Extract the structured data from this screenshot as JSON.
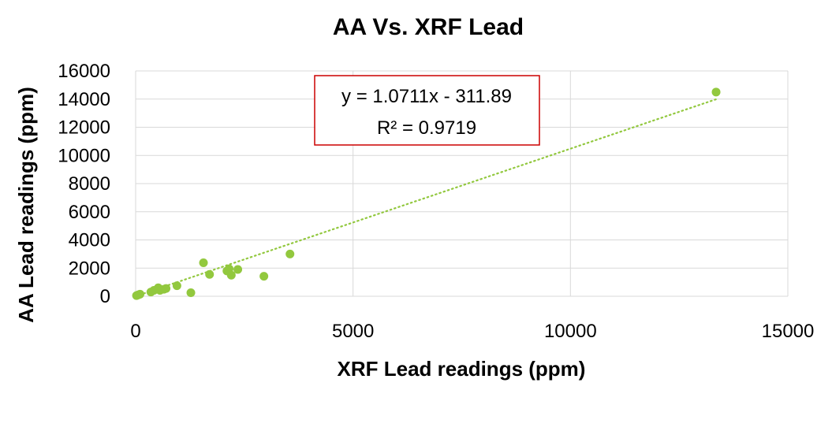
{
  "chart_data": {
    "type": "scatter",
    "title": "AA Vs. XRF Lead",
    "xlabel": "XRF Lead readings (ppm)",
    "ylabel": "AA Lead readings (ppm)",
    "xlim": [
      0,
      15000
    ],
    "ylim": [
      0,
      16000
    ],
    "x_ticks": [
      0,
      5000,
      10000,
      15000
    ],
    "y_ticks": [
      0,
      2000,
      4000,
      6000,
      8000,
      10000,
      12000,
      14000,
      16000
    ],
    "grid": true,
    "legend": "none",
    "marker_color": "#92c83e",
    "trendline_color": "#92c83e",
    "equation_box_border": "#cc0000",
    "series": [
      {
        "points": [
          {
            "x": 20,
            "y": 50
          },
          {
            "x": 60,
            "y": 100
          },
          {
            "x": 100,
            "y": 150
          },
          {
            "x": 350,
            "y": 300
          },
          {
            "x": 420,
            "y": 420
          },
          {
            "x": 520,
            "y": 600
          },
          {
            "x": 560,
            "y": 420
          },
          {
            "x": 650,
            "y": 500
          },
          {
            "x": 700,
            "y": 550
          },
          {
            "x": 950,
            "y": 750
          },
          {
            "x": 1270,
            "y": 250
          },
          {
            "x": 1560,
            "y": 2380
          },
          {
            "x": 1700,
            "y": 1550
          },
          {
            "x": 2100,
            "y": 1800
          },
          {
            "x": 2150,
            "y": 1950
          },
          {
            "x": 2200,
            "y": 1500
          },
          {
            "x": 2350,
            "y": 1900
          },
          {
            "x": 2950,
            "y": 1420
          },
          {
            "x": 3550,
            "y": 3000
          },
          {
            "x": 13350,
            "y": 14500
          }
        ]
      }
    ],
    "trendline": {
      "type": "linear",
      "slope": 1.0711,
      "intercept": -311.89,
      "x_range": [
        0,
        13350
      ],
      "equation_label": "y = 1.0711x - 311.89",
      "r2_label": "R² = 0.9719"
    }
  }
}
